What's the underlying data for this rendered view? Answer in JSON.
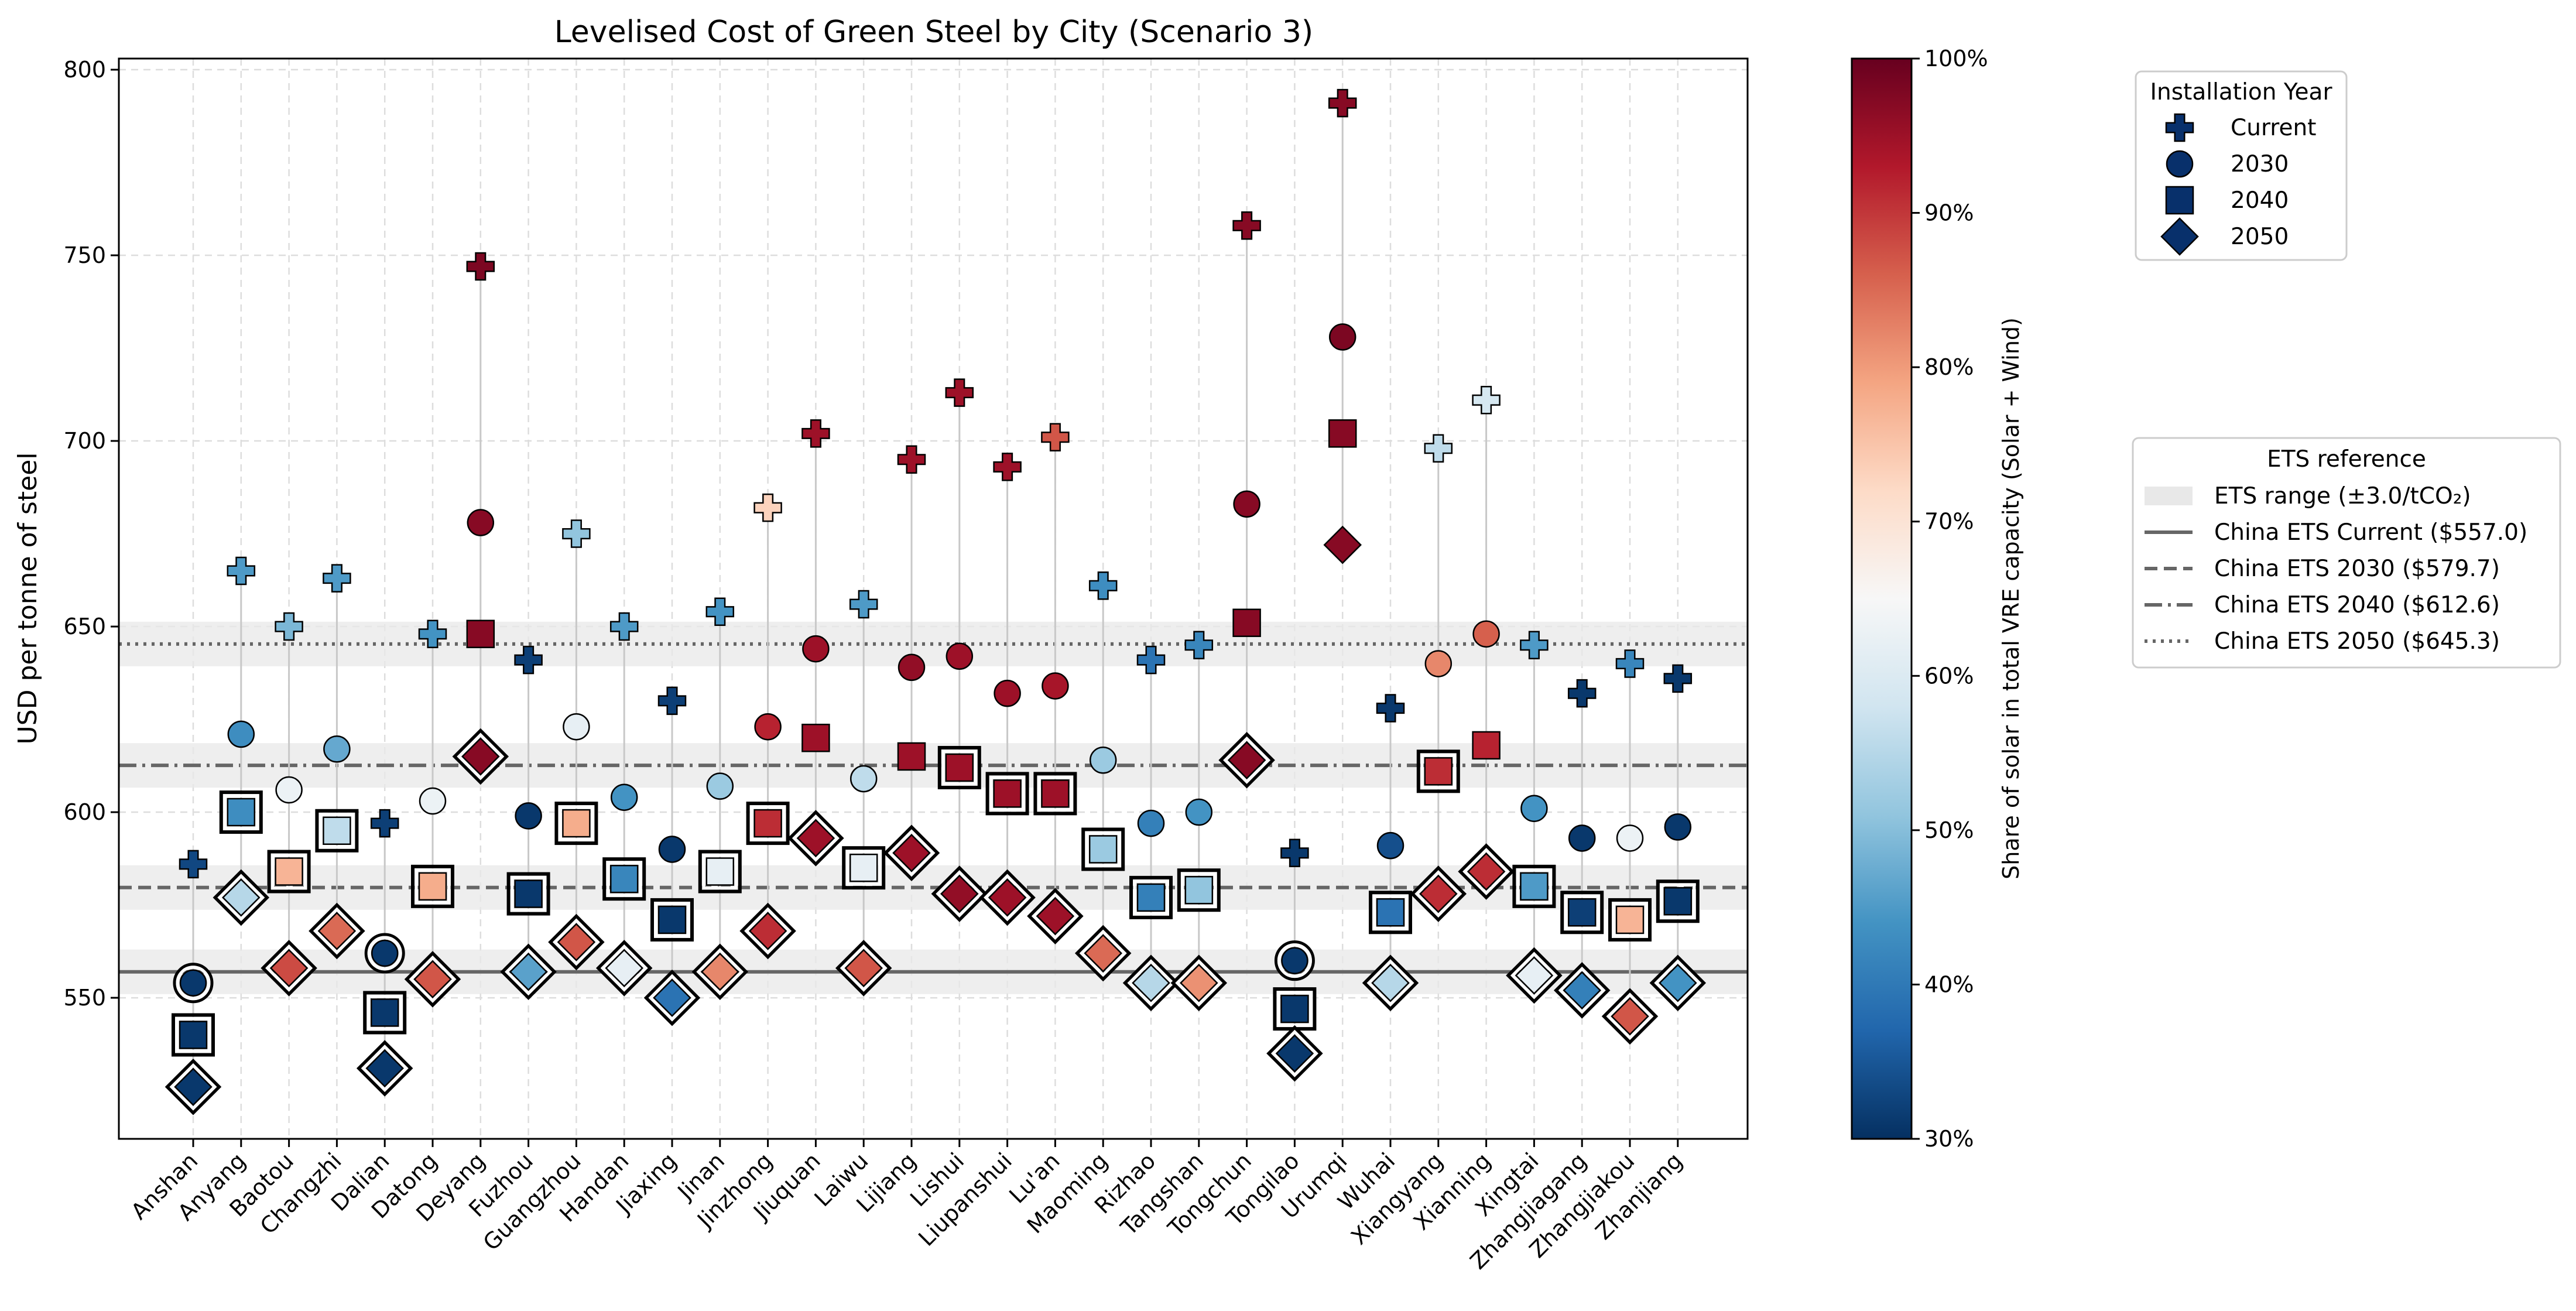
{
  "chart_data": {
    "type": "scatter",
    "title": "Levelised Cost of Green Steel by City (Scenario 3)",
    "xlabel": "",
    "ylabel": "USD per tonne of steel",
    "ylim": [
      512,
      803
    ],
    "yticks": [
      550,
      600,
      650,
      700,
      750,
      800
    ],
    "grid": true,
    "categories": [
      "Anshan",
      "Anyang",
      "Baotou",
      "Changzhi",
      "Dalian",
      "Datong",
      "Deyang",
      "Fuzhou",
      "Guangzhou",
      "Handan",
      "Jiaxing",
      "Jinan",
      "Jinzhong",
      "Jiuquan",
      "Laiwu",
      "Lijiang",
      "Lishui",
      "Liupanshui",
      "Lu'an",
      "Maoming",
      "Rizhao",
      "Tangshan",
      "Tongchun",
      "Tongilao",
      "Urumqi",
      "Wuhai",
      "Xiangyang",
      "Xianning",
      "Xingtai",
      "Zhangjiagang",
      "Zhangjiakou",
      "Zhanjiang"
    ],
    "series": [
      {
        "name": "Current",
        "marker": "plus",
        "values": [
          586,
          665,
          650,
          663,
          597,
          648,
          747,
          641,
          675,
          650,
          630,
          654,
          682,
          702,
          656,
          695,
          713,
          693,
          701,
          661,
          641,
          645,
          758,
          589,
          791,
          628,
          698,
          711,
          645,
          632,
          640,
          636
        ],
        "solar_share": [
          0.33,
          0.45,
          0.49,
          0.45,
          0.32,
          0.44,
          0.98,
          0.32,
          0.51,
          0.45,
          0.32,
          0.44,
          0.73,
          0.95,
          0.45,
          0.95,
          0.95,
          0.95,
          0.87,
          0.43,
          0.39,
          0.42,
          0.97,
          0.31,
          0.97,
          0.31,
          0.56,
          0.59,
          0.45,
          0.31,
          0.42,
          0.31
        ]
      },
      {
        "name": "2030",
        "marker": "circle",
        "values": [
          554,
          621,
          606,
          617,
          562,
          603,
          678,
          599,
          623,
          604,
          590,
          607,
          623,
          644,
          609,
          639,
          642,
          632,
          634,
          614,
          597,
          600,
          683,
          560,
          728,
          591,
          640,
          648,
          601,
          593,
          593,
          596
        ],
        "solar_share": [
          0.31,
          0.43,
          0.63,
          0.47,
          0.31,
          0.63,
          0.97,
          0.31,
          0.62,
          0.44,
          0.31,
          0.52,
          0.92,
          0.95,
          0.56,
          0.96,
          0.95,
          0.95,
          0.94,
          0.52,
          0.41,
          0.44,
          0.97,
          0.31,
          0.98,
          0.34,
          0.82,
          0.86,
          0.44,
          0.31,
          0.63,
          0.31
        ]
      },
      {
        "name": "2040",
        "marker": "square",
        "values": [
          540,
          600,
          584,
          595,
          546,
          580,
          648,
          578,
          597,
          582,
          571,
          584,
          597,
          620,
          585,
          615,
          612,
          605,
          605,
          590,
          577,
          579,
          651,
          547,
          702,
          573,
          611,
          618,
          580,
          573,
          571,
          576
        ],
        "solar_share": [
          0.31,
          0.43,
          0.77,
          0.56,
          0.31,
          0.78,
          0.97,
          0.31,
          0.78,
          0.42,
          0.31,
          0.62,
          0.91,
          0.95,
          0.62,
          0.95,
          0.95,
          0.95,
          0.95,
          0.52,
          0.41,
          0.51,
          0.97,
          0.31,
          0.97,
          0.39,
          0.91,
          0.92,
          0.45,
          0.32,
          0.77,
          0.31
        ]
      },
      {
        "name": "2050",
        "marker": "diamond",
        "values": [
          526,
          577,
          558,
          568,
          531,
          555,
          615,
          557,
          565,
          558,
          550,
          557,
          568,
          593,
          558,
          589,
          578,
          577,
          572,
          562,
          554,
          554,
          614,
          535,
          672,
          554,
          578,
          584,
          556,
          552,
          545,
          554
        ],
        "solar_share": [
          0.31,
          0.55,
          0.88,
          0.85,
          0.31,
          0.87,
          0.97,
          0.46,
          0.87,
          0.62,
          0.39,
          0.82,
          0.91,
          0.95,
          0.87,
          0.95,
          0.96,
          0.95,
          0.95,
          0.85,
          0.55,
          0.81,
          0.97,
          0.31,
          0.97,
          0.55,
          0.91,
          0.91,
          0.62,
          0.41,
          0.87,
          0.44
        ]
      }
    ],
    "highlighted_markers_note": "some markers have thick outline",
    "ets_lines": [
      {
        "label": "China ETS Current ($557.0)",
        "value": 557.0,
        "style": "solid"
      },
      {
        "label": "China ETS 2030 ($579.7)",
        "value": 579.7,
        "style": "dashed"
      },
      {
        "label": "China ETS 2040 ($612.6)",
        "value": 612.6,
        "style": "dashdot"
      },
      {
        "label": "China ETS 2050 ($645.3)",
        "value": 645.3,
        "style": "dotted"
      }
    ],
    "ets_band_halfwidth": 6,
    "colorbar": {
      "label": "Share of solar in total VRE capacity (Solar + Wind)",
      "range": [
        0.3,
        1.0
      ],
      "ticks": [
        "30%",
        "40%",
        "50%",
        "60%",
        "70%",
        "80%",
        "90%",
        "100%"
      ],
      "colormap": "RdBu_r"
    },
    "legend_year": {
      "title": "Installation Year",
      "entries": [
        "Current",
        "2030",
        "2040",
        "2050"
      ],
      "color": "#08306b"
    },
    "legend_ets": {
      "title": "ETS reference",
      "entries": [
        "ETS range (±3.0/tCO₂)",
        "China ETS Current ($557.0)",
        "China ETS 2030 ($579.7)",
        "China ETS 2040 ($612.6)",
        "China ETS 2050 ($645.3)"
      ]
    },
    "highlighted": {
      "2030": [
        0,
        4,
        23
      ],
      "2040": [
        0,
        1,
        2,
        3,
        4,
        5,
        7,
        8,
        9,
        10,
        11,
        12,
        14,
        16,
        17,
        18,
        19,
        20,
        21,
        23,
        25,
        26,
        28,
        29,
        30,
        31
      ],
      "2050": [
        0,
        1,
        2,
        3,
        4,
        5,
        6,
        7,
        8,
        9,
        10,
        11,
        12,
        13,
        14,
        15,
        16,
        17,
        18,
        19,
        20,
        21,
        22,
        23,
        25,
        26,
        27,
        28,
        29,
        30,
        31
      ]
    },
    "axis_color": "#000000",
    "line_color": "#666666",
    "band_color": "#e8e8e8"
  }
}
